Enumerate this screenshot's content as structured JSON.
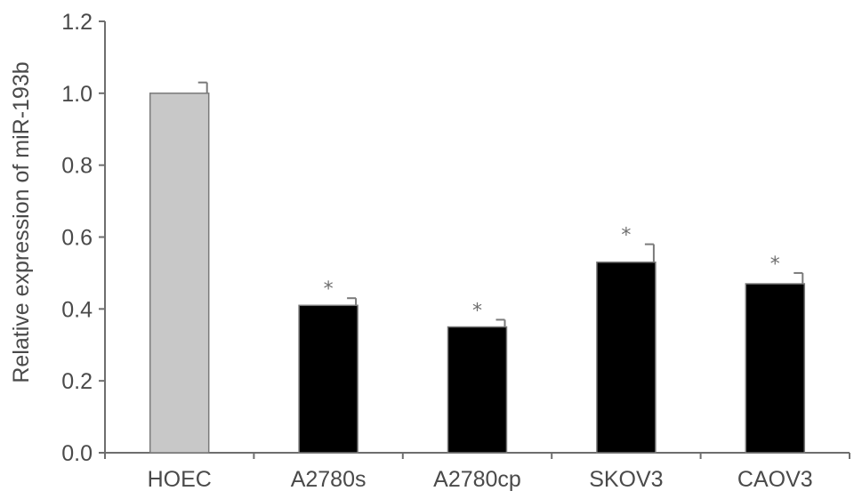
{
  "chart_data": {
    "type": "bar",
    "categories": [
      "HOEC",
      "A2780s",
      "A2780cp",
      "SKOV3",
      "CAOV3"
    ],
    "values": [
      1.0,
      0.41,
      0.35,
      0.53,
      0.47
    ],
    "errors": [
      0.03,
      0.02,
      0.02,
      0.05,
      0.03
    ],
    "significance": [
      "",
      "*",
      "*",
      "*",
      "*"
    ],
    "bar_colors": [
      "#c8c8c8",
      "#000000",
      "#000000",
      "#000000",
      "#000000"
    ],
    "bar_stroke": "#7a7a7a",
    "title": "",
    "xlabel": "",
    "ylabel": "Relative expression of miR-193b",
    "ylim": [
      0.0,
      1.2
    ],
    "yticks": [
      "0.0",
      "0.2",
      "0.4",
      "0.6",
      "0.8",
      "1.0",
      "1.2"
    ],
    "grid": false,
    "legend": "none"
  }
}
